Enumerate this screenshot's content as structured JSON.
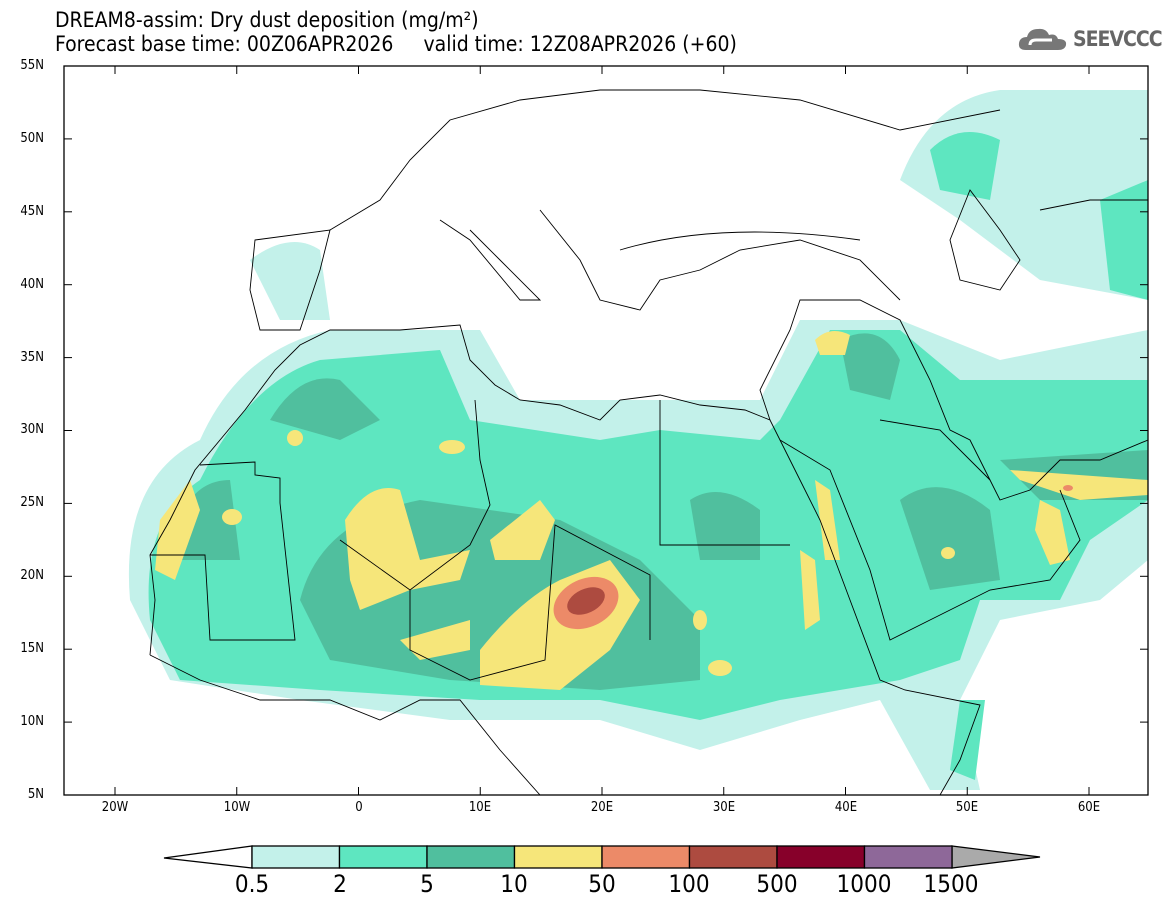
{
  "header": {
    "title": "DREAM8-assim: Dry dust deposition (mg/m²)",
    "base_time": "Forecast base time: 00Z06APR2026",
    "valid_time": "valid time: 12Z08APR2026 (+60)",
    "logo_text": "SEEVCCC"
  },
  "map": {
    "lat_labels": [
      "55N",
      "50N",
      "45N",
      "40N",
      "35N",
      "30N",
      "25N",
      "20N",
      "15N",
      "10N",
      "5N"
    ],
    "lon_labels": [
      "20W",
      "10W",
      "0",
      "10E",
      "20E",
      "30E",
      "40E",
      "50E",
      "60E"
    ]
  },
  "colorbar": {
    "levels": [
      "0.5",
      "2",
      "5",
      "10",
      "50",
      "100",
      "500",
      "1000",
      "1500"
    ],
    "colors": [
      "#c3f1ea",
      "#5ee6c0",
      "#50bf9e",
      "#f6e67a",
      "#ec8a68",
      "#ad4b40",
      "#87002a",
      "#8e6899"
    ],
    "under_color": "#ffffff",
    "over_color": "#aaaaaa"
  }
}
